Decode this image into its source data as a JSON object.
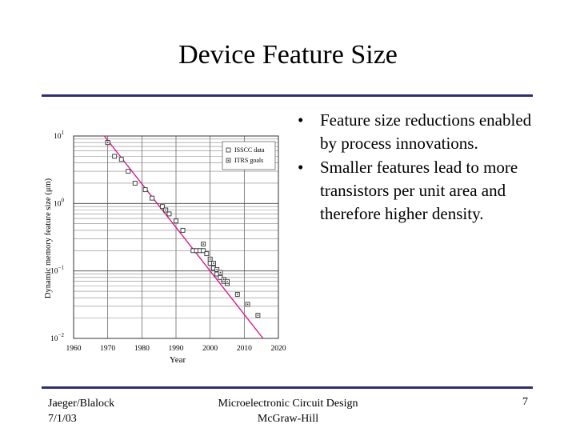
{
  "slide": {
    "title": "Device Feature Size",
    "bullets": [
      "Feature size reductions enabled by process innovations.",
      "Smaller features lead to more transistors per unit area and therefore higher density."
    ],
    "bullet_symbol": "•",
    "footer": {
      "left_line1": "Jaeger/Blalock",
      "left_line2": "7/1/03",
      "center_line1": "Microelectronic Circuit Design",
      "center_line2": "McGraw-Hill",
      "page_number": "7"
    },
    "colors": {
      "rule": "#2e2f6e",
      "trend_line": "#d8198c"
    }
  },
  "chart_data": {
    "type": "scatter",
    "xlabel": "Year",
    "ylabel": "Dynamic memory feature size (μm)",
    "xlim": [
      1960,
      2020
    ],
    "ylim": [
      0.01,
      10
    ],
    "y_scale": "log",
    "x_ticks": [
      "1960",
      "1970",
      "1980",
      "1990",
      "2000",
      "2010",
      "2020"
    ],
    "y_ticks": [
      {
        "base": "10",
        "exp": "1",
        "value": 10
      },
      {
        "base": "10",
        "exp": "0",
        "value": 1
      },
      {
        "base": "10",
        "exp": "−1",
        "value": 0.1
      },
      {
        "base": "10",
        "exp": "−2",
        "value": 0.01
      }
    ],
    "grid": true,
    "legend_position": "top-right",
    "series": [
      {
        "name": "ISSCC data",
        "marker": "open-square",
        "points": [
          {
            "x": 1970,
            "y": 8.0
          },
          {
            "x": 1972,
            "y": 5.0
          },
          {
            "x": 1974,
            "y": 4.5
          },
          {
            "x": 1976,
            "y": 3.0
          },
          {
            "x": 1978,
            "y": 2.0
          },
          {
            "x": 1981,
            "y": 1.6
          },
          {
            "x": 1983,
            "y": 1.2
          },
          {
            "x": 1986,
            "y": 0.9
          },
          {
            "x": 1988,
            "y": 0.7
          },
          {
            "x": 1990,
            "y": 0.55
          },
          {
            "x": 1992,
            "y": 0.4
          },
          {
            "x": 1995,
            "y": 0.2
          },
          {
            "x": 1996,
            "y": 0.2
          },
          {
            "x": 1997,
            "y": 0.2
          },
          {
            "x": 1998,
            "y": 0.2
          },
          {
            "x": 1999,
            "y": 0.18
          },
          {
            "x": 2000,
            "y": 0.13
          },
          {
            "x": 2001,
            "y": 0.11
          },
          {
            "x": 2002,
            "y": 0.09
          },
          {
            "x": 2003,
            "y": 0.08
          },
          {
            "x": 2004,
            "y": 0.07
          },
          {
            "x": 2005,
            "y": 0.065
          }
        ]
      },
      {
        "name": "ITRS goals",
        "marker": "dotted-square",
        "points": [
          {
            "x": 1970,
            "y": 8.0
          },
          {
            "x": 1987,
            "y": 0.8
          },
          {
            "x": 1998,
            "y": 0.25
          },
          {
            "x": 2000,
            "y": 0.15
          },
          {
            "x": 2001,
            "y": 0.13
          },
          {
            "x": 2002,
            "y": 0.105
          },
          {
            "x": 2003,
            "y": 0.095
          },
          {
            "x": 2004,
            "y": 0.075
          },
          {
            "x": 2005,
            "y": 0.07
          },
          {
            "x": 2008,
            "y": 0.045
          },
          {
            "x": 2011,
            "y": 0.032
          },
          {
            "x": 2014,
            "y": 0.022
          }
        ]
      }
    ],
    "trend_line": {
      "points": [
        {
          "x": 1969,
          "y": 10
        },
        {
          "x": 2015.5,
          "y": 0.01
        }
      ]
    }
  }
}
